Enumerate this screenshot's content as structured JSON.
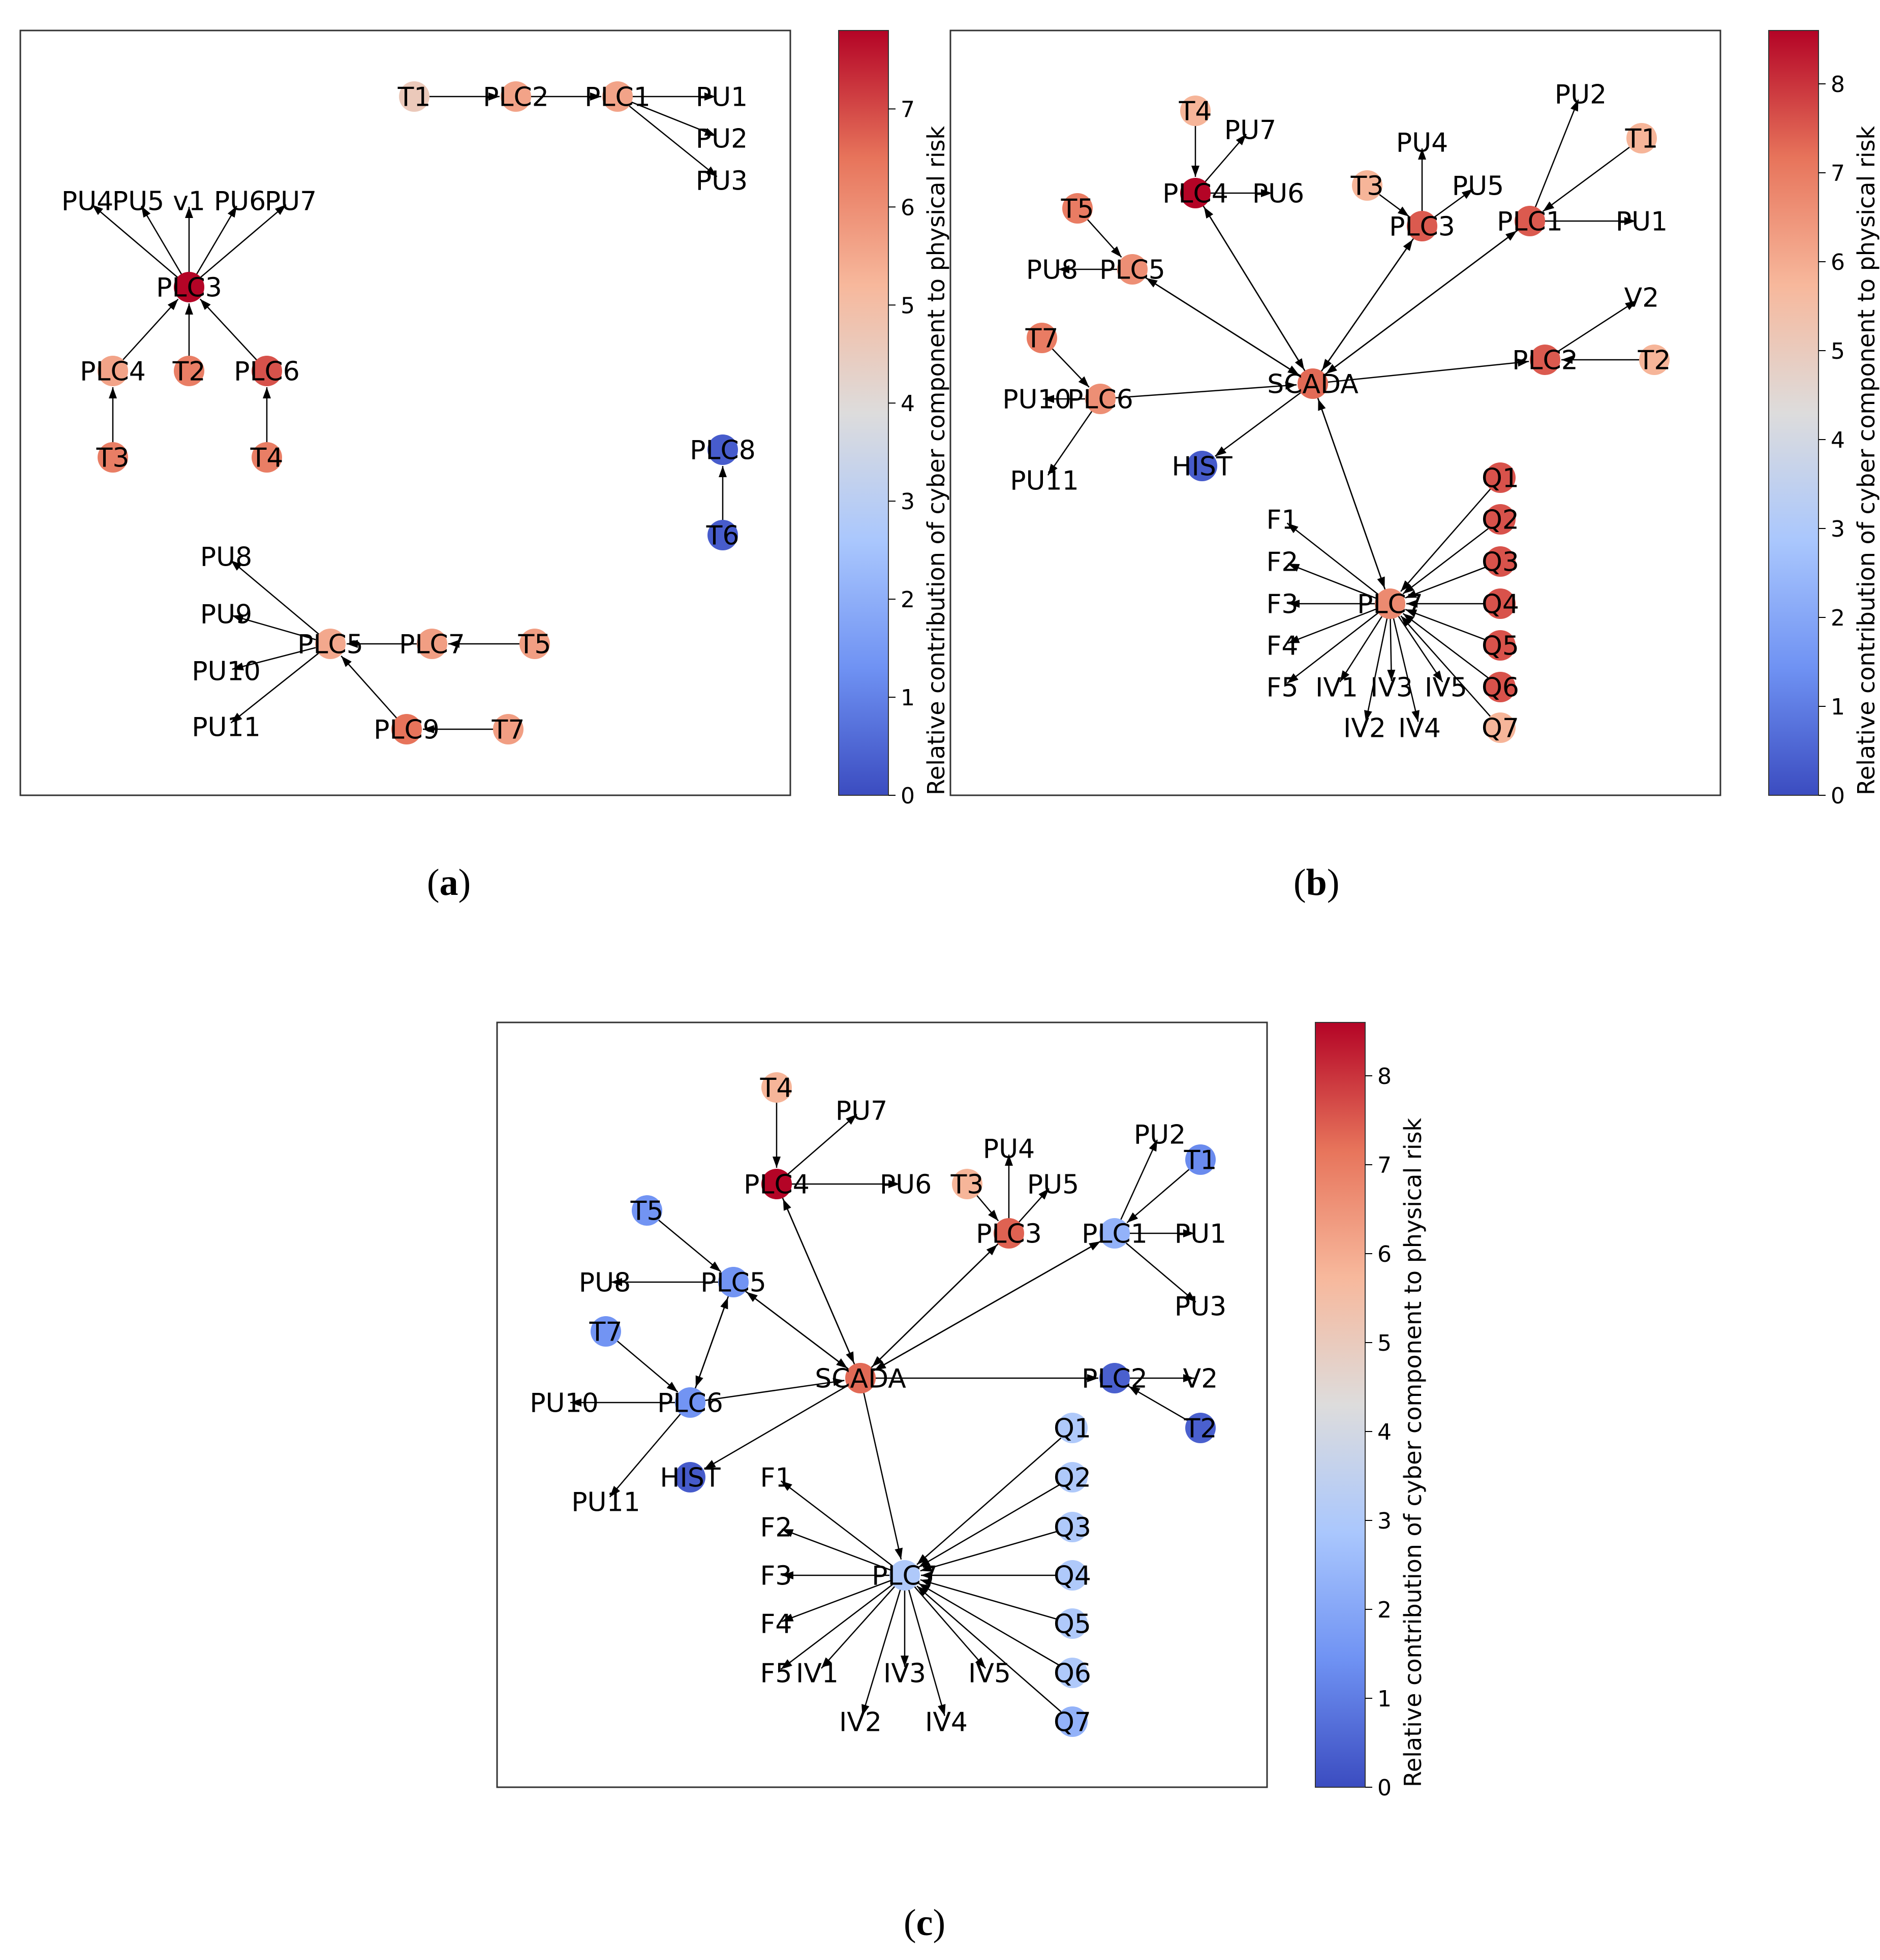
{
  "colorbar": {
    "label": "Relative contribution of cyber component to physical risk",
    "colors": [
      "#3b4cc0",
      "#6f92f3",
      "#aac7fd",
      "#dddcdc",
      "#f7b89c",
      "#e7745b",
      "#b40426"
    ]
  },
  "panels": [
    {
      "id": "a",
      "caption": "a",
      "cbar_ticks": [
        "0",
        "1",
        "2",
        "3",
        "4",
        "5",
        "6",
        "7"
      ],
      "vmax": 7.8,
      "nodes": [
        {
          "id": "T1",
          "label": "T1",
          "value": 4.6
        },
        {
          "id": "PLC2",
          "label": "PLC2",
          "value": 5.6
        },
        {
          "id": "PLC1",
          "label": "PLC1",
          "value": 5.6
        },
        {
          "id": "PU1",
          "label": "PU1",
          "value": null
        },
        {
          "id": "PU2",
          "label": "PU2",
          "value": null
        },
        {
          "id": "PU3",
          "label": "PU3",
          "value": null
        },
        {
          "id": "PU4",
          "label": "PU4",
          "value": null
        },
        {
          "id": "PU5",
          "label": "PU5",
          "value": null
        },
        {
          "id": "v1",
          "label": "v1",
          "value": null
        },
        {
          "id": "PU6",
          "label": "PU6",
          "value": null
        },
        {
          "id": "PU7",
          "label": "PU7",
          "value": null
        },
        {
          "id": "PLC3",
          "label": "PLC3",
          "value": 7.8
        },
        {
          "id": "PLC4",
          "label": "PLC4",
          "value": 5.6
        },
        {
          "id": "T2",
          "label": "T2",
          "value": 6.3
        },
        {
          "id": "PLC6",
          "label": "PLC6",
          "value": 6.9
        },
        {
          "id": "T3",
          "label": "T3",
          "value": 6.3
        },
        {
          "id": "T4",
          "label": "T4",
          "value": 6.3
        },
        {
          "id": "PLC8",
          "label": "PLC8",
          "value": 0.3
        },
        {
          "id": "T6",
          "label": "T6",
          "value": 0.3
        },
        {
          "id": "PU8",
          "label": "PU8",
          "value": null
        },
        {
          "id": "PU9",
          "label": "PU9",
          "value": null
        },
        {
          "id": "PU10",
          "label": "PU10",
          "value": null
        },
        {
          "id": "PU11",
          "label": "PU11",
          "value": null
        },
        {
          "id": "PLC5",
          "label": "PLC5",
          "value": 5.5
        },
        {
          "id": "PLC7",
          "label": "PLC7",
          "value": 5.7
        },
        {
          "id": "T5",
          "label": "T5",
          "value": 5.7
        },
        {
          "id": "PLC9",
          "label": "PLC9",
          "value": 6.5
        },
        {
          "id": "T7",
          "label": "T7",
          "value": 5.7
        }
      ],
      "edges": [
        [
          "T1",
          "PLC2"
        ],
        [
          "PLC2",
          "PLC1"
        ],
        [
          "PLC1",
          "PU1"
        ],
        [
          "PLC1",
          "PU2"
        ],
        [
          "PLC1",
          "PU3"
        ],
        [
          "PLC3",
          "PU4"
        ],
        [
          "PLC3",
          "PU5"
        ],
        [
          "PLC3",
          "v1"
        ],
        [
          "PLC3",
          "PU6"
        ],
        [
          "PLC3",
          "PU7"
        ],
        [
          "PLC4",
          "PLC3"
        ],
        [
          "T2",
          "PLC3"
        ],
        [
          "PLC6",
          "PLC3"
        ],
        [
          "T3",
          "PLC4"
        ],
        [
          "T4",
          "PLC6"
        ],
        [
          "T6",
          "PLC8"
        ],
        [
          "PLC5",
          "PU8"
        ],
        [
          "PLC5",
          "PU9"
        ],
        [
          "PLC5",
          "PU10"
        ],
        [
          "PLC5",
          "PU11"
        ],
        [
          "PLC7",
          "PLC5"
        ],
        [
          "T5",
          "PLC7"
        ],
        [
          "PLC9",
          "PLC5"
        ],
        [
          "T7",
          "PLC9"
        ]
      ]
    },
    {
      "id": "b",
      "caption": "b",
      "cbar_ticks": [
        "0",
        "1",
        "2",
        "3",
        "4",
        "5",
        "6",
        "7",
        "8"
      ],
      "vmax": 8.6,
      "nodes": [
        {
          "id": "T4",
          "label": "T4",
          "value": 5.8
        },
        {
          "id": "PU7",
          "label": "PU7",
          "value": null
        },
        {
          "id": "PLC4",
          "label": "PLC4",
          "value": 8.6
        },
        {
          "id": "PU6",
          "label": "PU6",
          "value": null
        },
        {
          "id": "T5",
          "label": "T5",
          "value": 7.0
        },
        {
          "id": "PU8",
          "label": "PU8",
          "value": null
        },
        {
          "id": "PLC5",
          "label": "PLC5",
          "value": 6.6
        },
        {
          "id": "T7",
          "label": "T7",
          "value": 7.0
        },
        {
          "id": "PU10",
          "label": "PU10",
          "value": null
        },
        {
          "id": "PLC6",
          "label": "PLC6",
          "value": 6.6
        },
        {
          "id": "PU11",
          "label": "PU11",
          "value": null
        },
        {
          "id": "HIST",
          "label": "HIST",
          "value": 0.3
        },
        {
          "id": "SCADA",
          "label": "SCADA",
          "value": 7.3
        },
        {
          "id": "PU4",
          "label": "PU4",
          "value": null
        },
        {
          "id": "T3",
          "label": "T3",
          "value": 5.8
        },
        {
          "id": "PU5",
          "label": "PU5",
          "value": null
        },
        {
          "id": "PLC3",
          "label": "PLC3",
          "value": 7.5
        },
        {
          "id": "PU2",
          "label": "PU2",
          "value": null
        },
        {
          "id": "T1",
          "label": "T1",
          "value": 5.8
        },
        {
          "id": "PLC1",
          "label": "PLC1",
          "value": 7.5
        },
        {
          "id": "PU1",
          "label": "PU1",
          "value": null
        },
        {
          "id": "V2",
          "label": "V2",
          "value": null
        },
        {
          "id": "PLC2",
          "label": "PLC2",
          "value": 7.5
        },
        {
          "id": "T2",
          "label": "T2",
          "value": 5.8
        },
        {
          "id": "PLC7",
          "label": "PLC7",
          "value": 6.7
        },
        {
          "id": "F1",
          "label": "F1",
          "value": null
        },
        {
          "id": "F2",
          "label": "F2",
          "value": null
        },
        {
          "id": "F3",
          "label": "F3",
          "value": null
        },
        {
          "id": "F4",
          "label": "F4",
          "value": null
        },
        {
          "id": "F5",
          "label": "F5",
          "value": null
        },
        {
          "id": "IV1",
          "label": "IV1",
          "value": null
        },
        {
          "id": "IV2",
          "label": "IV2",
          "value": null
        },
        {
          "id": "IV3",
          "label": "IV3",
          "value": null
        },
        {
          "id": "IV4",
          "label": "IV4",
          "value": null
        },
        {
          "id": "IV5",
          "label": "IV5",
          "value": null
        },
        {
          "id": "Q1",
          "label": "Q1",
          "value": 7.6
        },
        {
          "id": "Q2",
          "label": "Q2",
          "value": 7.6
        },
        {
          "id": "Q3",
          "label": "Q3",
          "value": 7.6
        },
        {
          "id": "Q4",
          "label": "Q4",
          "value": 7.6
        },
        {
          "id": "Q5",
          "label": "Q5",
          "value": 7.6
        },
        {
          "id": "Q6",
          "label": "Q6",
          "value": 7.6
        },
        {
          "id": "Q7",
          "label": "Q7",
          "value": 5.8
        }
      ],
      "edges": [
        [
          "T4",
          "PLC4"
        ],
        [
          "PLC4",
          "PU7"
        ],
        [
          "PLC4",
          "PU6"
        ],
        [
          "T5",
          "PLC5"
        ],
        [
          "PLC5",
          "PU8"
        ],
        [
          "T7",
          "PLC6"
        ],
        [
          "PLC6",
          "PU10"
        ],
        [
          "PLC6",
          "PU11"
        ],
        [
          "PLC3",
          "PU4"
        ],
        [
          "T3",
          "PLC3"
        ],
        [
          "PLC3",
          "PU5"
        ],
        [
          "PLC1",
          "PU2"
        ],
        [
          "T1",
          "PLC1"
        ],
        [
          "PLC1",
          "PU1"
        ],
        [
          "PLC2",
          "V2"
        ],
        [
          "T2",
          "PLC2"
        ],
        [
          "SCADA",
          "PLC4"
        ],
        [
          "PLC4",
          "SCADA"
        ],
        [
          "SCADA",
          "PLC5"
        ],
        [
          "PLC5",
          "SCADA"
        ],
        [
          "PLC6",
          "SCADA"
        ],
        [
          "SCADA",
          "HIST"
        ],
        [
          "SCADA",
          "PLC3"
        ],
        [
          "PLC3",
          "SCADA"
        ],
        [
          "SCADA",
          "PLC1"
        ],
        [
          "PLC1",
          "SCADA"
        ],
        [
          "SCADA",
          "PLC2"
        ],
        [
          "SCADA",
          "PLC7"
        ],
        [
          "PLC7",
          "SCADA"
        ],
        [
          "PLC7",
          "F1"
        ],
        [
          "PLC7",
          "F2"
        ],
        [
          "PLC7",
          "F3"
        ],
        [
          "PLC7",
          "F4"
        ],
        [
          "PLC7",
          "F5"
        ],
        [
          "PLC7",
          "IV1"
        ],
        [
          "PLC7",
          "IV2"
        ],
        [
          "PLC7",
          "IV3"
        ],
        [
          "PLC7",
          "IV4"
        ],
        [
          "PLC7",
          "IV5"
        ],
        [
          "Q1",
          "PLC7"
        ],
        [
          "Q2",
          "PLC7"
        ],
        [
          "Q3",
          "PLC7"
        ],
        [
          "Q4",
          "PLC7"
        ],
        [
          "Q5",
          "PLC7"
        ],
        [
          "Q6",
          "PLC7"
        ],
        [
          "Q7",
          "PLC7"
        ]
      ]
    },
    {
      "id": "c",
      "caption": "c",
      "cbar_ticks": [
        "0",
        "1",
        "2",
        "3",
        "4",
        "5",
        "6",
        "7",
        "8"
      ],
      "vmax": 8.6,
      "nodes": [
        {
          "id": "T4",
          "label": "T4",
          "value": 5.8
        },
        {
          "id": "PU7",
          "label": "PU7",
          "value": null
        },
        {
          "id": "PLC4",
          "label": "PLC4",
          "value": 8.6
        },
        {
          "id": "PU6",
          "label": "PU6",
          "value": null
        },
        {
          "id": "T5",
          "label": "T5",
          "value": 1.5
        },
        {
          "id": "PU8",
          "label": "PU8",
          "value": null
        },
        {
          "id": "PLC5",
          "label": "PLC5",
          "value": 1.5
        },
        {
          "id": "T7",
          "label": "T7",
          "value": 1.5
        },
        {
          "id": "PU10",
          "label": "PU10",
          "value": null
        },
        {
          "id": "PLC6",
          "label": "PLC6",
          "value": 1.5
        },
        {
          "id": "PU11",
          "label": "PU11",
          "value": null
        },
        {
          "id": "HIST",
          "label": "HIST",
          "value": 0.3
        },
        {
          "id": "SCADA",
          "label": "SCADA",
          "value": 7.3
        },
        {
          "id": "PU4",
          "label": "PU4",
          "value": null
        },
        {
          "id": "T3",
          "label": "T3",
          "value": 5.8
        },
        {
          "id": "PU5",
          "label": "PU5",
          "value": null
        },
        {
          "id": "PLC3",
          "label": "PLC3",
          "value": 7.4
        },
        {
          "id": "PU2",
          "label": "PU2",
          "value": null
        },
        {
          "id": "T1",
          "label": "T1",
          "value": 1.3
        },
        {
          "id": "PLC1",
          "label": "PLC1",
          "value": 2.3
        },
        {
          "id": "PU1",
          "label": "PU1",
          "value": null
        },
        {
          "id": "PU3",
          "label": "PU3",
          "value": null
        },
        {
          "id": "V2",
          "label": "V2",
          "value": null
        },
        {
          "id": "PLC2",
          "label": "PLC2",
          "value": 0.4
        },
        {
          "id": "T2",
          "label": "T2",
          "value": 0.4
        },
        {
          "id": "PLC7",
          "label": "PLC7",
          "value": 3.0
        },
        {
          "id": "F1",
          "label": "F1",
          "value": null
        },
        {
          "id": "F2",
          "label": "F2",
          "value": null
        },
        {
          "id": "F3",
          "label": "F3",
          "value": null
        },
        {
          "id": "F4",
          "label": "F4",
          "value": null
        },
        {
          "id": "F5",
          "label": "F5",
          "value": null
        },
        {
          "id": "IV1",
          "label": "IV1",
          "value": null
        },
        {
          "id": "IV2",
          "label": "IV2",
          "value": null
        },
        {
          "id": "IV3",
          "label": "IV3",
          "value": null
        },
        {
          "id": "IV4",
          "label": "IV4",
          "value": null
        },
        {
          "id": "IV5",
          "label": "IV5",
          "value": null
        },
        {
          "id": "Q1",
          "label": "Q1",
          "value": 3.0
        },
        {
          "id": "Q2",
          "label": "Q2",
          "value": 3.0
        },
        {
          "id": "Q3",
          "label": "Q3",
          "value": 3.0
        },
        {
          "id": "Q4",
          "label": "Q4",
          "value": 3.0
        },
        {
          "id": "Q5",
          "label": "Q5",
          "value": 3.0
        },
        {
          "id": "Q6",
          "label": "Q6",
          "value": 3.0
        },
        {
          "id": "Q7",
          "label": "Q7",
          "value": 2.3
        }
      ],
      "edges": [
        [
          "T4",
          "PLC4"
        ],
        [
          "PLC4",
          "PU7"
        ],
        [
          "PLC4",
          "PU6"
        ],
        [
          "T5",
          "PLC5"
        ],
        [
          "PLC5",
          "PU8"
        ],
        [
          "T7",
          "PLC6"
        ],
        [
          "PLC6",
          "PU10"
        ],
        [
          "PLC6",
          "PU11"
        ],
        [
          "PLC5",
          "PLC6"
        ],
        [
          "PLC6",
          "PLC5"
        ],
        [
          "PLC3",
          "PU4"
        ],
        [
          "T3",
          "PLC3"
        ],
        [
          "PLC3",
          "PU5"
        ],
        [
          "PLC1",
          "PU2"
        ],
        [
          "T1",
          "PLC1"
        ],
        [
          "PLC1",
          "PU1"
        ],
        [
          "PLC1",
          "PU3"
        ],
        [
          "PLC2",
          "V2"
        ],
        [
          "T2",
          "PLC2"
        ],
        [
          "SCADA",
          "PLC4"
        ],
        [
          "PLC4",
          "SCADA"
        ],
        [
          "SCADA",
          "PLC5"
        ],
        [
          "PLC5",
          "SCADA"
        ],
        [
          "PLC6",
          "SCADA"
        ],
        [
          "SCADA",
          "HIST"
        ],
        [
          "SCADA",
          "PLC3"
        ],
        [
          "PLC3",
          "SCADA"
        ],
        [
          "SCADA",
          "PLC1"
        ],
        [
          "PLC1",
          "SCADA"
        ],
        [
          "SCADA",
          "PLC2"
        ],
        [
          "SCADA",
          "PLC7"
        ],
        [
          "PLC7",
          "F1"
        ],
        [
          "PLC7",
          "F2"
        ],
        [
          "PLC7",
          "F3"
        ],
        [
          "PLC7",
          "F4"
        ],
        [
          "PLC7",
          "F5"
        ],
        [
          "PLC7",
          "IV1"
        ],
        [
          "PLC7",
          "IV2"
        ],
        [
          "PLC7",
          "IV3"
        ],
        [
          "PLC7",
          "IV4"
        ],
        [
          "PLC7",
          "IV5"
        ],
        [
          "Q1",
          "PLC7"
        ],
        [
          "Q2",
          "PLC7"
        ],
        [
          "Q3",
          "PLC7"
        ],
        [
          "Q4",
          "PLC7"
        ],
        [
          "Q5",
          "PLC7"
        ],
        [
          "Q6",
          "PLC7"
        ],
        [
          "Q7",
          "PLC7"
        ]
      ]
    }
  ]
}
